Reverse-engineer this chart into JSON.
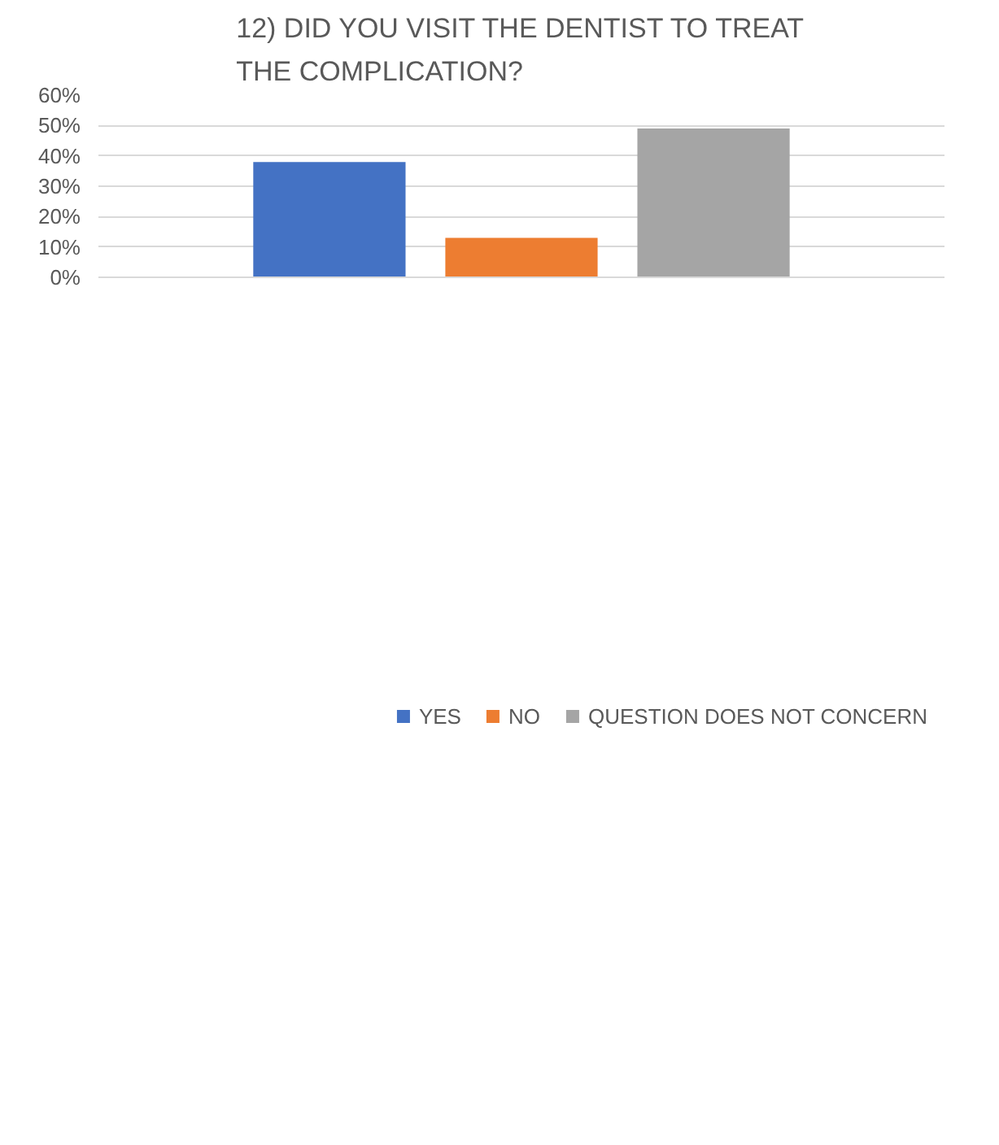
{
  "chart_data": {
    "type": "bar",
    "title": "12) DID YOU VISIT THE DENTIST TO TREAT THE COMPLICATION?",
    "categories": [
      null
    ],
    "series": [
      {
        "name": "YES",
        "color": "#4472c4",
        "values": [
          38
        ]
      },
      {
        "name": "NO",
        "color": "#ed7d31",
        "values": [
          13
        ]
      },
      {
        "name": "QUESTION DOES NOT CONCERN",
        "color": "#a5a5a5",
        "values": [
          49
        ]
      }
    ],
    "ylim": [
      0,
      60
    ],
    "yticks": [
      {
        "value": 0,
        "label": "0%"
      },
      {
        "value": 10,
        "label": "10%"
      },
      {
        "value": 20,
        "label": "20%"
      },
      {
        "value": 30,
        "label": "30%"
      },
      {
        "value": 40,
        "label": "40%"
      },
      {
        "value": 50,
        "label": "50%"
      },
      {
        "value": 60,
        "label": "60%"
      }
    ],
    "grid": "y",
    "legend": "bottom"
  }
}
